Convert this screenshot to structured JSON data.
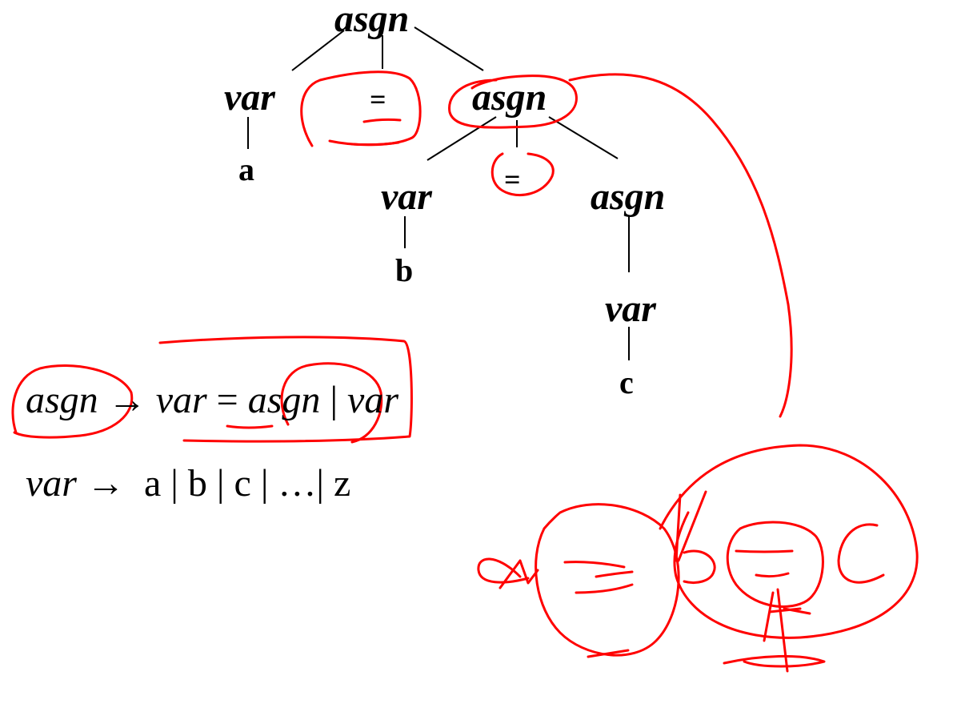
{
  "tree": {
    "root": "asgn",
    "level1": {
      "left": "var",
      "eq": "=",
      "right": "asgn"
    },
    "leaf_a": "a",
    "level2": {
      "left": "var",
      "eq": "=",
      "right": "asgn"
    },
    "leaf_b": "b",
    "level3": {
      "node": "var"
    },
    "leaf_c": "c"
  },
  "grammar": {
    "rule1": {
      "lhs": "asgn",
      "arrow": "→",
      "var": "var",
      "eq": "=",
      "asgn": "asgn",
      "bar": "|",
      "alt": "var"
    },
    "rule2": {
      "lhs": "var",
      "arrow": "→",
      "rhs": "a | b | c | …| z"
    }
  },
  "annotation_color": "#ff0000",
  "line_color": "#000000"
}
